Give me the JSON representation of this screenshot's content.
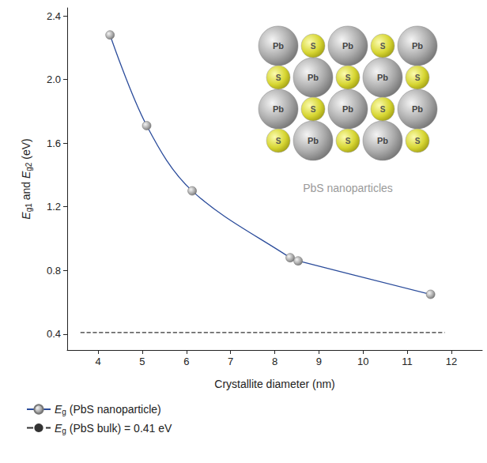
{
  "chart_data": {
    "type": "line",
    "x_label": "Crystallite diameter (nm)",
    "y_label": "Eg1 and Eg2 (eV)",
    "xlim": [
      3.3,
      12.7
    ],
    "xticks": [
      4,
      5,
      6,
      7,
      8,
      9,
      10,
      11,
      12
    ],
    "ylim": [
      0.3,
      2.45
    ],
    "yticks": [
      0.4,
      0.8,
      1.2,
      1.6,
      {
        "value": 2,
        "label": "2.0"
      },
      2.4
    ],
    "grid": false,
    "legend": "bottom",
    "series": [
      {
        "name": "Eg (PbS nanoparticle)",
        "type": "line",
        "marker": "circle",
        "line_style": "solid",
        "color": "#2b4c9b",
        "x": [
          4.27,
          5.1,
          6.13,
          8.35,
          8.53,
          11.53
        ],
        "values": [
          2.28,
          1.71,
          1.3,
          0.88,
          0.86,
          0.65
        ]
      },
      {
        "name": "Eg (PbS bulk) = 0.41 eV",
        "type": "line",
        "marker": "none",
        "line_style": "dashed",
        "color": "#333333",
        "x": [
          3.6,
          11.85
        ],
        "values": [
          0.41,
          0.41
        ]
      }
    ],
    "inset": {
      "caption": "PbS nanoparticles",
      "atoms": [
        "Pb",
        "S"
      ]
    }
  }
}
